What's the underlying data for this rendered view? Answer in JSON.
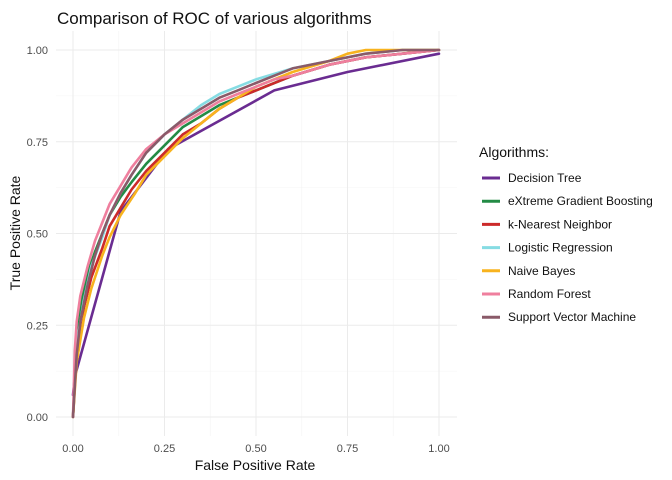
{
  "chart_data": {
    "type": "line",
    "title": "Comparison of ROC of various algorithms",
    "xlabel": "False Positive Rate",
    "ylabel": "True Positive Rate",
    "xlim": [
      0,
      1
    ],
    "ylim": [
      0,
      1
    ],
    "x_ticks": [
      "0.00",
      "0.25",
      "0.50",
      "0.75",
      "1.00"
    ],
    "y_ticks": [
      "0.00",
      "0.25",
      "0.50",
      "0.75",
      "1.00"
    ],
    "grid": true,
    "legend_title": "Algorithms:",
    "legend_position": "right",
    "series": [
      {
        "name": "Decision Tree",
        "color": "#6a2c91",
        "points": [
          [
            0,
            0.06
          ],
          [
            0.005,
            0.11
          ],
          [
            0.13,
            0.56
          ],
          [
            0.26,
            0.73
          ],
          [
            0.55,
            0.89
          ],
          [
            0.75,
            0.94
          ],
          [
            1,
            0.99
          ]
        ]
      },
      {
        "name": "eXtreme Gradient Boosting",
        "color": "#238b45",
        "points": [
          [
            0,
            0
          ],
          [
            0.01,
            0.2
          ],
          [
            0.02,
            0.3
          ],
          [
            0.04,
            0.39
          ],
          [
            0.06,
            0.45
          ],
          [
            0.08,
            0.5
          ],
          [
            0.1,
            0.55
          ],
          [
            0.13,
            0.6
          ],
          [
            0.16,
            0.64
          ],
          [
            0.2,
            0.69
          ],
          [
            0.25,
            0.74
          ],
          [
            0.3,
            0.79
          ],
          [
            0.35,
            0.82
          ],
          [
            0.4,
            0.85
          ],
          [
            0.45,
            0.87
          ],
          [
            0.5,
            0.89
          ],
          [
            0.55,
            0.91
          ],
          [
            0.6,
            0.93
          ],
          [
            0.7,
            0.96
          ],
          [
            0.8,
            0.98
          ],
          [
            0.9,
            0.99
          ],
          [
            1,
            1
          ]
        ]
      },
      {
        "name": "k-Nearest Neighbor",
        "color": "#cc2a2a",
        "points": [
          [
            0,
            0
          ],
          [
            0.01,
            0.18
          ],
          [
            0.03,
            0.3
          ],
          [
            0.05,
            0.38
          ],
          [
            0.08,
            0.46
          ],
          [
            0.1,
            0.52
          ],
          [
            0.13,
            0.57
          ],
          [
            0.16,
            0.62
          ],
          [
            0.2,
            0.67
          ],
          [
            0.25,
            0.72
          ],
          [
            0.3,
            0.77
          ],
          [
            0.35,
            0.8
          ],
          [
            0.4,
            0.84
          ],
          [
            0.45,
            0.87
          ],
          [
            0.5,
            0.89
          ],
          [
            0.6,
            0.93
          ],
          [
            0.7,
            0.96
          ],
          [
            0.8,
            0.98
          ],
          [
            0.9,
            0.99
          ],
          [
            1,
            1
          ]
        ]
      },
      {
        "name": "Logistic Regression",
        "color": "#86dce3",
        "points": [
          [
            0,
            0
          ],
          [
            0.005,
            0.12
          ],
          [
            0.01,
            0.2
          ],
          [
            0.03,
            0.32
          ],
          [
            0.05,
            0.41
          ],
          [
            0.08,
            0.49
          ],
          [
            0.1,
            0.55
          ],
          [
            0.13,
            0.61
          ],
          [
            0.16,
            0.66
          ],
          [
            0.2,
            0.72
          ],
          [
            0.25,
            0.77
          ],
          [
            0.3,
            0.81
          ],
          [
            0.35,
            0.85
          ],
          [
            0.4,
            0.88
          ],
          [
            0.45,
            0.9
          ],
          [
            0.5,
            0.92
          ],
          [
            0.6,
            0.95
          ],
          [
            0.7,
            0.97
          ],
          [
            0.8,
            0.99
          ],
          [
            0.9,
            1
          ],
          [
            1,
            1
          ]
        ]
      },
      {
        "name": "Naive Bayes",
        "color": "#f8b31e",
        "points": [
          [
            0,
            0
          ],
          [
            0.01,
            0.15
          ],
          [
            0.03,
            0.27
          ],
          [
            0.05,
            0.35
          ],
          [
            0.08,
            0.44
          ],
          [
            0.1,
            0.49
          ],
          [
            0.13,
            0.55
          ],
          [
            0.17,
            0.61
          ],
          [
            0.2,
            0.66
          ],
          [
            0.25,
            0.71
          ],
          [
            0.3,
            0.76
          ],
          [
            0.35,
            0.8
          ],
          [
            0.4,
            0.84
          ],
          [
            0.45,
            0.87
          ],
          [
            0.5,
            0.9
          ],
          [
            0.6,
            0.94
          ],
          [
            0.7,
            0.97
          ],
          [
            0.75,
            0.99
          ],
          [
            0.8,
            1
          ],
          [
            1,
            1
          ]
        ]
      },
      {
        "name": "Random Forest",
        "color": "#ef7f9e",
        "points": [
          [
            0,
            0
          ],
          [
            0.005,
            0.18
          ],
          [
            0.01,
            0.26
          ],
          [
            0.02,
            0.33
          ],
          [
            0.04,
            0.41
          ],
          [
            0.06,
            0.48
          ],
          [
            0.08,
            0.53
          ],
          [
            0.1,
            0.58
          ],
          [
            0.13,
            0.63
          ],
          [
            0.16,
            0.68
          ],
          [
            0.2,
            0.73
          ],
          [
            0.25,
            0.77
          ],
          [
            0.3,
            0.8
          ],
          [
            0.35,
            0.83
          ],
          [
            0.4,
            0.86
          ],
          [
            0.45,
            0.88
          ],
          [
            0.5,
            0.9
          ],
          [
            0.55,
            0.92
          ],
          [
            0.6,
            0.93
          ],
          [
            0.7,
            0.96
          ],
          [
            0.8,
            0.98
          ],
          [
            0.9,
            0.99
          ],
          [
            1,
            1
          ]
        ]
      },
      {
        "name": "Support Vector Machine",
        "color": "#8a5a69",
        "points": [
          [
            0,
            0
          ],
          [
            0.01,
            0.17
          ],
          [
            0.02,
            0.26
          ],
          [
            0.04,
            0.36
          ],
          [
            0.06,
            0.44
          ],
          [
            0.08,
            0.5
          ],
          [
            0.1,
            0.55
          ],
          [
            0.13,
            0.61
          ],
          [
            0.16,
            0.66
          ],
          [
            0.2,
            0.72
          ],
          [
            0.25,
            0.77
          ],
          [
            0.3,
            0.81
          ],
          [
            0.35,
            0.84
          ],
          [
            0.4,
            0.87
          ],
          [
            0.45,
            0.89
          ],
          [
            0.5,
            0.91
          ],
          [
            0.55,
            0.93
          ],
          [
            0.6,
            0.95
          ],
          [
            0.7,
            0.97
          ],
          [
            0.8,
            0.99
          ],
          [
            0.9,
            1
          ],
          [
            1,
            1
          ]
        ]
      }
    ]
  }
}
